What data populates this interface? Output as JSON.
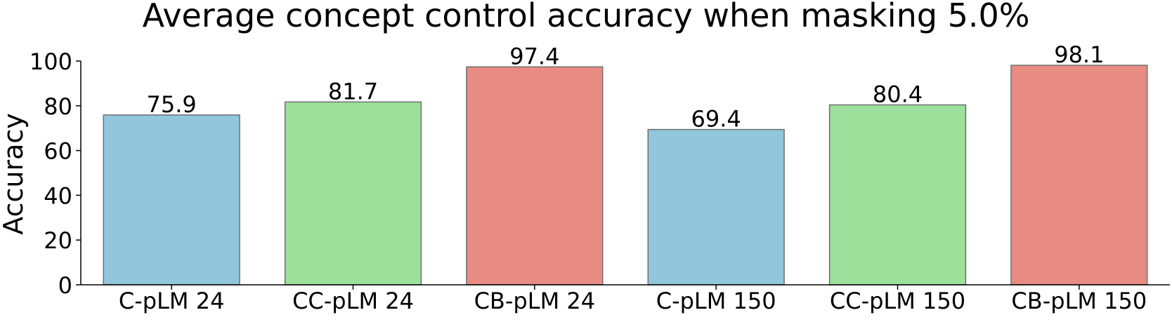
{
  "chart_data": {
    "type": "bar",
    "title": "Average concept control accuracy when masking 5.0%",
    "xlabel": "",
    "ylabel": "Accuracy",
    "categories": [
      "C-pLM 24",
      "CC-pLM 24",
      "CB-pLM 24",
      "C-pLM 150",
      "CC-pLM 150",
      "CB-pLM 150"
    ],
    "values": [
      75.9,
      81.7,
      97.4,
      69.4,
      80.4,
      98.1
    ],
    "value_labels": [
      "75.9",
      "81.7",
      "97.4",
      "69.4",
      "80.4",
      "98.1"
    ],
    "colors": [
      "#92c6dc",
      "#9ce09c",
      "#e88b83",
      "#92c6dc",
      "#9ce09c",
      "#e88b83"
    ],
    "bar_edge_color": "#6f6f6f",
    "ylim": [
      0,
      100
    ],
    "yticks": [
      0,
      20,
      40,
      60,
      80,
      100
    ],
    "grid": false,
    "legend": "none"
  }
}
